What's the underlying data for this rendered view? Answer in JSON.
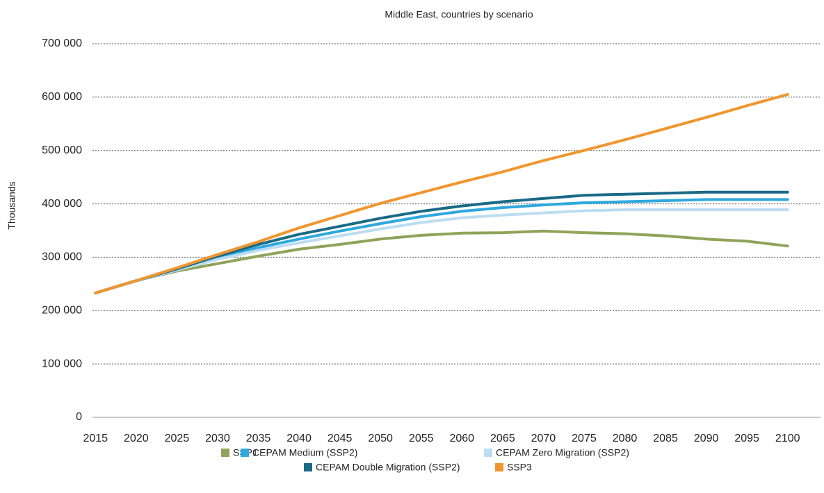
{
  "chart_data": {
    "type": "line",
    "title": "Middle East, countries by scenario",
    "ylabel": "Thousands",
    "categories": [
      "2015",
      "2020",
      "2025",
      "2030",
      "2035",
      "2040",
      "2045",
      "2050",
      "2055",
      "2060",
      "2065",
      "2070",
      "2075",
      "2080",
      "2085",
      "2090",
      "2095",
      "2100"
    ],
    "series": [
      {
        "name": "SSP1",
        "color": "#8fa35a",
        "values": [
          233000,
          256000,
          274000,
          288000,
          302000,
          315000,
          324000,
          334000,
          341000,
          345000,
          346000,
          349000,
          346000,
          344000,
          340000,
          334000,
          330000,
          321000
        ]
      },
      {
        "name": "CEPAM Medium (SSP2)",
        "color": "#2ea8df",
        "values": [
          233000,
          256000,
          277000,
          299000,
          318000,
          334000,
          349000,
          363000,
          376000,
          386000,
          393000,
          398000,
          402000,
          404000,
          406000,
          408000,
          408000,
          408000
        ]
      },
      {
        "name": "CEPAM Zero Migration (SSP2)",
        "color": "#bcdcf2",
        "values": [
          233000,
          255000,
          276000,
          296000,
          313000,
          327000,
          340000,
          353000,
          365000,
          374000,
          379000,
          383000,
          387000,
          389000,
          389000,
          389000,
          389000,
          389000
        ]
      },
      {
        "name": "CEPAM Double Migration (SSP2)",
        "color": "#1a6a87",
        "values": [
          233000,
          256000,
          278000,
          302000,
          324000,
          343000,
          358000,
          373000,
          386000,
          396000,
          404000,
          410000,
          416000,
          418000,
          420000,
          422000,
          422000,
          422000
        ]
      },
      {
        "name": "SSP3",
        "color": "#f0962e",
        "values": [
          233000,
          256000,
          280000,
          305000,
          329000,
          355000,
          378000,
          401000,
          421000,
          441000,
          460000,
          481000,
          500000,
          520000,
          541000,
          562000,
          584000,
          605000
        ]
      }
    ],
    "ylim": [
      0,
      700000
    ],
    "yticks": [
      0,
      {
        "value": 100000,
        "label": "100 000"
      },
      {
        "value": 200000,
        "label": "200 000"
      },
      {
        "value": 300000,
        "label": "300 000"
      },
      {
        "value": 400000,
        "label": "400 000"
      },
      {
        "value": 500000,
        "label": "500 000"
      },
      {
        "value": 600000,
        "label": "600 000"
      },
      {
        "value": 700000,
        "label": "700 000"
      }
    ],
    "grid": true
  }
}
